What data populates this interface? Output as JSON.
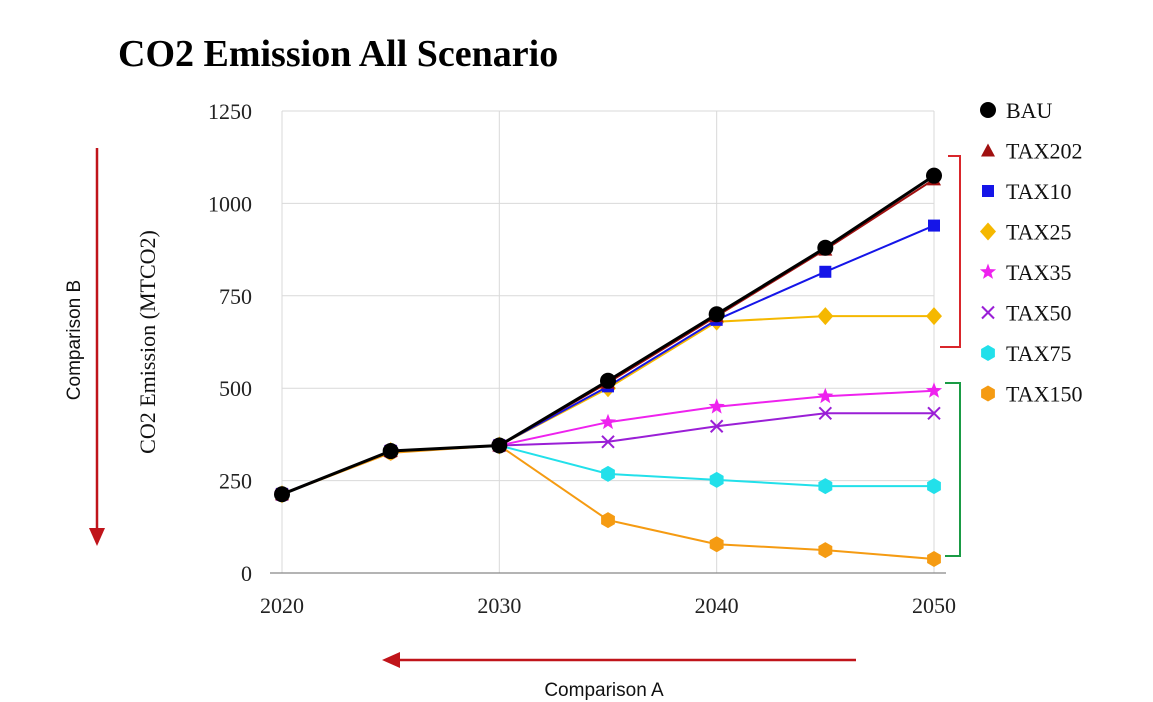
{
  "chart_data": {
    "type": "line",
    "title": "CO2 Emission All Scenario",
    "ylabel": "CO2 Emission (MTCO2)",
    "xlabel": "",
    "x": [
      2020,
      2025,
      2030,
      2035,
      2040,
      2045,
      2050
    ],
    "xticks": [
      2020,
      2030,
      2040,
      2050
    ],
    "yticks": [
      0,
      250,
      500,
      750,
      1000,
      1250
    ],
    "xlim": [
      2020,
      2050
    ],
    "ylim": [
      0,
      1250
    ],
    "grid": true,
    "legend_position": "right",
    "series": [
      {
        "name": "BAU",
        "color": "#000000",
        "marker": "circle",
        "values": [
          213,
          330,
          345,
          520,
          700,
          880,
          1075
        ]
      },
      {
        "name": "TAX202",
        "color": "#a01010",
        "marker": "triangle",
        "values": [
          213,
          330,
          345,
          515,
          695,
          875,
          1065
        ]
      },
      {
        "name": "TAX10",
        "color": "#1515e8",
        "marker": "square",
        "values": [
          213,
          330,
          345,
          505,
          685,
          815,
          940
        ]
      },
      {
        "name": "TAX25",
        "color": "#f5b800",
        "marker": "diamond",
        "values": [
          213,
          330,
          345,
          500,
          680,
          695,
          695
        ]
      },
      {
        "name": "TAX35",
        "color": "#ee22ee",
        "marker": "star",
        "values": [
          213,
          330,
          345,
          408,
          450,
          478,
          493
        ]
      },
      {
        "name": "TAX50",
        "color": "#9a1fd6",
        "marker": "x",
        "values": [
          213,
          330,
          345,
          355,
          397,
          432,
          432
        ]
      },
      {
        "name": "TAX75",
        "color": "#22e0ea",
        "marker": "hexagon",
        "values": [
          213,
          330,
          345,
          268,
          252,
          235,
          235
        ]
      },
      {
        "name": "TAX150",
        "color": "#f59b12",
        "marker": "hexagon",
        "values": [
          213,
          325,
          345,
          143,
          78,
          62,
          38
        ]
      }
    ]
  },
  "annotations": {
    "comparison_a": "Comparison A",
    "comparison_b": "Comparison B",
    "arrow_color": "#c0141a",
    "bracket_red_color": "#d9262b",
    "bracket_green_color": "#1a9b45"
  }
}
